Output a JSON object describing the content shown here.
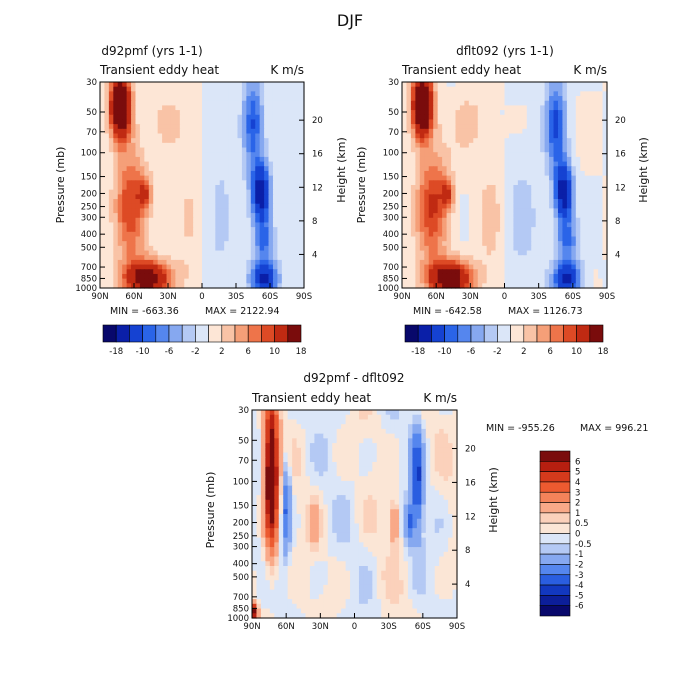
{
  "figure_title": "DJF",
  "chart_data": [
    {
      "type": "heatmap",
      "title": "d92pmf (yrs 1-1)",
      "subtitle_left": "Transient eddy heat",
      "subtitle_right": "K m/s",
      "xlabel": "",
      "ylabel": "Pressure (mb)",
      "y2label": "Height (km)",
      "x_ticks": [
        "90N",
        "60N",
        "30N",
        "0",
        "30S",
        "60S",
        "90S"
      ],
      "y_ticks": [
        "30",
        "50",
        "70",
        "100",
        "150",
        "200",
        "250",
        "300",
        "400",
        "500",
        "700",
        "850",
        "1000"
      ],
      "y_ticks_values": [
        30,
        50,
        70,
        100,
        150,
        200,
        250,
        300,
        400,
        500,
        700,
        850,
        1000
      ],
      "y2_ticks": [
        "4",
        "8",
        "12",
        "16",
        "20"
      ],
      "y2_ticks_values": [
        4,
        8,
        12,
        16,
        20
      ],
      "ylim": [
        1000,
        30
      ],
      "xlim": [
        90,
        -90
      ],
      "min_label": "MIN = -663.36",
      "max_label": "MAX = 2122.94",
      "colorbar_labels": [
        "-18",
        "-10",
        "-6",
        "-2",
        "2",
        "6",
        "10",
        "18"
      ]
    },
    {
      "type": "heatmap",
      "title": "dflt092 (yrs 1-1)",
      "subtitle_left": "Transient eddy heat",
      "subtitle_right": "K m/s",
      "xlabel": "",
      "ylabel": "Pressure (mb)",
      "y2label": "Height (km)",
      "x_ticks": [
        "90N",
        "60N",
        "30N",
        "0",
        "30S",
        "60S",
        "90S"
      ],
      "y_ticks": [
        "30",
        "50",
        "70",
        "100",
        "150",
        "200",
        "250",
        "300",
        "400",
        "500",
        "700",
        "850",
        "1000"
      ],
      "y_ticks_values": [
        30,
        50,
        70,
        100,
        150,
        200,
        250,
        300,
        400,
        500,
        700,
        850,
        1000
      ],
      "y2_ticks": [
        "4",
        "8",
        "12",
        "16",
        "20"
      ],
      "y2_ticks_values": [
        4,
        8,
        12,
        16,
        20
      ],
      "ylim": [
        1000,
        30
      ],
      "xlim": [
        90,
        -90
      ],
      "min_label": "MIN = -642.58",
      "max_label": "MAX = 1126.73",
      "colorbar_labels": [
        "-18",
        "-10",
        "-6",
        "-2",
        "2",
        "6",
        "10",
        "18"
      ]
    },
    {
      "type": "heatmap",
      "title": "d92pmf - dflt092",
      "subtitle_left": "Transient eddy heat",
      "subtitle_right": "K m/s",
      "xlabel": "",
      "ylabel": "Pressure (mb)",
      "y2label": "Height (km)",
      "x_ticks": [
        "90N",
        "60N",
        "30N",
        "0",
        "30S",
        "60S",
        "90S"
      ],
      "y_ticks": [
        "30",
        "50",
        "70",
        "100",
        "150",
        "200",
        "250",
        "300",
        "400",
        "500",
        "700",
        "850",
        "1000"
      ],
      "y_ticks_values": [
        30,
        50,
        70,
        100,
        150,
        200,
        250,
        300,
        400,
        500,
        700,
        850,
        1000
      ],
      "y2_ticks": [
        "4",
        "8",
        "12",
        "16",
        "20"
      ],
      "y2_ticks_values": [
        4,
        8,
        12,
        16,
        20
      ],
      "ylim": [
        1000,
        30
      ],
      "xlim": [
        90,
        -90
      ],
      "min_label": "MIN = -955.26",
      "max_label": "MAX = 996.21",
      "colorbar_labels": [
        "6",
        "5",
        "4",
        "3",
        "2",
        "1",
        "0.5",
        "0",
        "-0.5",
        "-1",
        "-2",
        "-3",
        "-4",
        "-5",
        "-6"
      ]
    }
  ],
  "colors": {
    "diverging_scale": [
      "#08086b",
      "#0a1fa8",
      "#1542d2",
      "#2a64e8",
      "#5586ee",
      "#86a8f0",
      "#b4c9f4",
      "#dbe6f8",
      "#fde6d6",
      "#f9c3a6",
      "#f59f78",
      "#ee744a",
      "#dd4a25",
      "#c02a12",
      "#7a0c0c"
    ],
    "diff_scale": [
      "#7a0c0c",
      "#b71f10",
      "#d43a1c",
      "#ec5a30",
      "#f4835a",
      "#f9a988",
      "#fbd1bb",
      "#fbe6d6",
      "#dbe6f8",
      "#b4c9f4",
      "#86a8f0",
      "#5586ee",
      "#2a5ee0",
      "#1238c0",
      "#0c1e99",
      "#08086b"
    ]
  }
}
